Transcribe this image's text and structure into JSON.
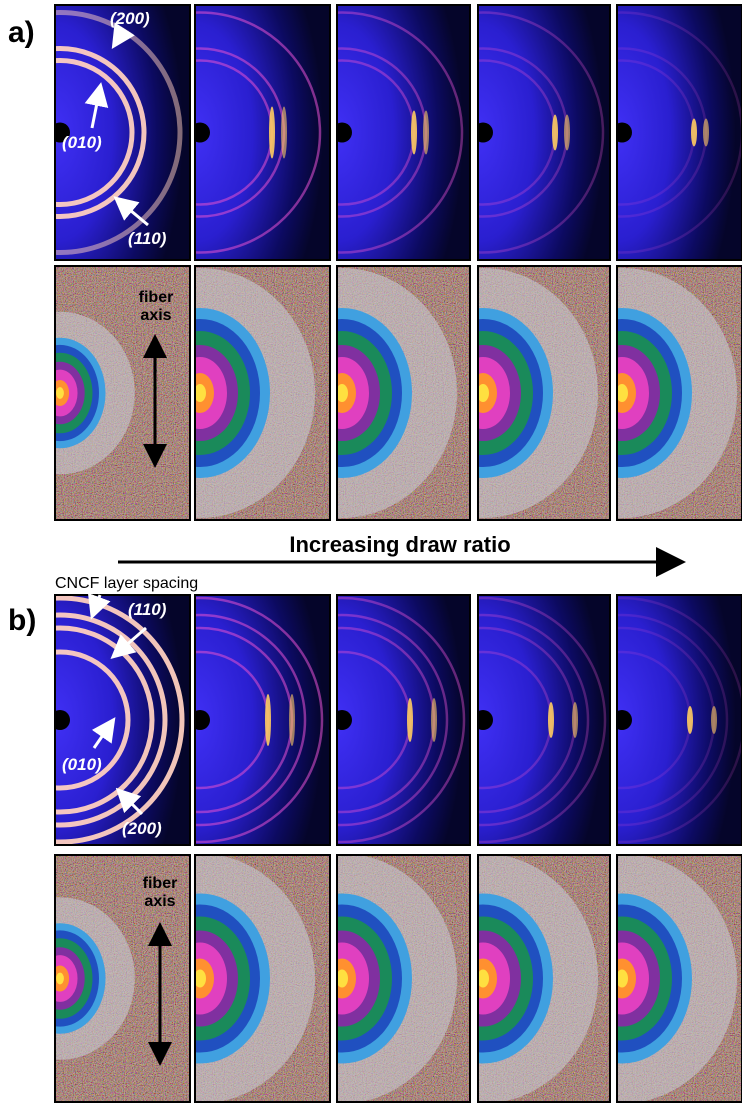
{
  "panel_a": {
    "label": "a)",
    "annotations": [
      "(200)",
      "(010)",
      "(110)"
    ],
    "fiber_axis": [
      "fiber",
      "axis"
    ]
  },
  "arrow_label": "Increasing draw ratio",
  "panel_b": {
    "label": "b)",
    "layer_spacing": "CNCF layer spacing",
    "annotations": [
      "(110)",
      "(010)",
      "(200)"
    ],
    "fiber_axis": [
      "fiber",
      "axis"
    ]
  }
}
